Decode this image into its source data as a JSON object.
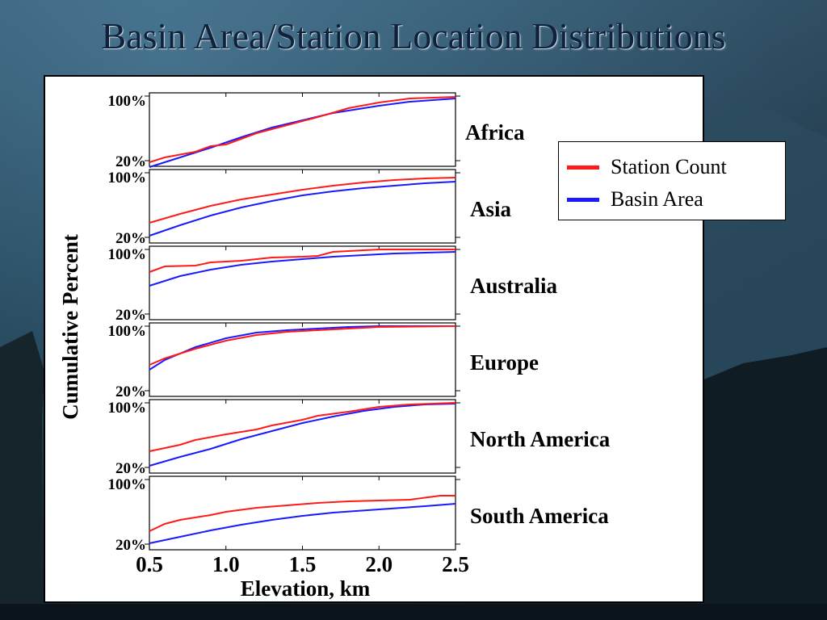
{
  "slide": {
    "title": "Basin Area/Station Location Distributions"
  },
  "colors": {
    "station": "#ff1a1a",
    "basin": "#1a1aff"
  },
  "chart_data": {
    "type": "line",
    "ylabel": "Cumulative Percent",
    "xlabel": "Elevation, km",
    "x_ticks": [
      "0.5",
      "1.0",
      "1.5",
      "2.0",
      "2.5"
    ],
    "x_tick_values": [
      0.5,
      1.0,
      1.5,
      2.0,
      2.5
    ],
    "y_tick_labels": [
      "100%",
      "20%"
    ],
    "xlim": [
      0.5,
      2.5
    ],
    "ylim": [
      10,
      100
    ],
    "legend": {
      "placement": "right",
      "entries": [
        {
          "name": "Station Count",
          "color": "#ff1a1a"
        },
        {
          "name": "Basin Area",
          "color": "#1a1aff"
        }
      ]
    },
    "panels": [
      {
        "region": "Africa",
        "series": [
          {
            "name": "Station Count",
            "x": [
              0.5,
              0.6,
              0.8,
              0.9,
              1.0,
              1.1,
              1.2,
              1.4,
              1.6,
              1.8,
              2.0,
              2.2,
              2.5
            ],
            "y": [
              18,
              24,
              31,
              38,
              40,
              47,
              54,
              64,
              74,
              85,
              92,
              97,
              99
            ]
          },
          {
            "name": "Basin Area",
            "x": [
              0.5,
              0.7,
              0.9,
              1.1,
              1.3,
              1.5,
              1.7,
              2.0,
              2.2,
              2.5
            ],
            "y": [
              12,
              24,
              36,
              49,
              61,
              70,
              79,
              88,
              93,
              97
            ]
          }
        ]
      },
      {
        "region": "Asia",
        "series": [
          {
            "name": "Station Count",
            "x": [
              0.5,
              0.7,
              0.9,
              1.1,
              1.3,
              1.5,
              1.7,
              1.9,
              2.1,
              2.3,
              2.5
            ],
            "y": [
              38,
              49,
              59,
              67,
              73,
              79,
              84,
              88,
              91,
              93,
              94
            ]
          },
          {
            "name": "Basin Area",
            "x": [
              0.5,
              0.7,
              0.9,
              1.1,
              1.3,
              1.5,
              1.7,
              1.9,
              2.1,
              2.3,
              2.5
            ],
            "y": [
              22,
              35,
              47,
              57,
              65,
              72,
              77,
              81,
              84,
              87,
              89
            ]
          }
        ]
      },
      {
        "region": "Australia",
        "series": [
          {
            "name": "Station Count",
            "x": [
              0.5,
              0.6,
              0.8,
              0.9,
              1.0,
              1.1,
              1.3,
              1.5,
              1.6,
              1.7,
              2.0,
              2.3,
              2.5
            ],
            "y": [
              72,
              79,
              80,
              84,
              85,
              86,
              90,
              91,
              92,
              97,
              100,
              100,
              100
            ]
          },
          {
            "name": "Basin Area",
            "x": [
              0.5,
              0.7,
              0.9,
              1.1,
              1.3,
              1.5,
              1.7,
              1.9,
              2.1,
              2.3,
              2.5
            ],
            "y": [
              55,
              67,
              75,
              81,
              85,
              88,
              91,
              93,
              95,
              96,
              97
            ]
          }
        ]
      },
      {
        "region": "Europe",
        "series": [
          {
            "name": "Station Count",
            "x": [
              0.5,
              0.6,
              0.8,
              1.0,
              1.2,
              1.4,
              1.6,
              1.8,
              2.0,
              2.5
            ],
            "y": [
              52,
              60,
              72,
              82,
              89,
              93,
              95,
              97,
              99,
              100
            ]
          },
          {
            "name": "Basin Area",
            "x": [
              0.5,
              0.6,
              0.8,
              1.0,
              1.2,
              1.4,
              1.6,
              1.8,
              2.0,
              2.5
            ],
            "y": [
              46,
              58,
              74,
              85,
              92,
              95,
              97,
              99,
              100,
              100
            ]
          }
        ]
      },
      {
        "region": "North America",
        "series": [
          {
            "name": "Station Count",
            "x": [
              0.5,
              0.7,
              0.8,
              1.0,
              1.2,
              1.3,
              1.5,
              1.6,
              1.8,
              2.0,
              2.2,
              2.5
            ],
            "y": [
              40,
              48,
              54,
              61,
              67,
              72,
              79,
              84,
              89,
              95,
              98,
              100
            ]
          },
          {
            "name": "Basin Area",
            "x": [
              0.5,
              0.7,
              0.9,
              1.1,
              1.3,
              1.5,
              1.7,
              1.9,
              2.1,
              2.3,
              2.5
            ],
            "y": [
              22,
              33,
              43,
              55,
              65,
              75,
              83,
              90,
              95,
              98,
              99
            ]
          }
        ]
      },
      {
        "region": "South America",
        "series": [
          {
            "name": "Station Count",
            "x": [
              0.5,
              0.6,
              0.7,
              0.9,
              1.0,
              1.2,
              1.4,
              1.6,
              1.8,
              2.0,
              2.2,
              2.4,
              2.5
            ],
            "y": [
              36,
              45,
              50,
              56,
              60,
              65,
              68,
              71,
              73,
              74,
              75,
              80,
              80
            ]
          },
          {
            "name": "Basin Area",
            "x": [
              0.5,
              0.7,
              0.9,
              1.1,
              1.3,
              1.5,
              1.7,
              2.0,
              2.3,
              2.5
            ],
            "y": [
              21,
              29,
              37,
              44,
              50,
              55,
              59,
              63,
              67,
              70
            ]
          }
        ]
      }
    ]
  }
}
